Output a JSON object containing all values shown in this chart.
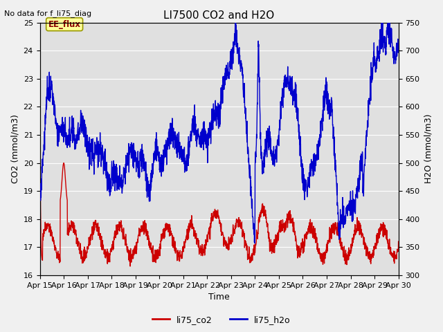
{
  "title": "LI7500 CO2 and H2O",
  "top_left_text": "No data for f_li75_diag",
  "annotation_text": "EE_flux",
  "xlabel": "Time",
  "ylabel_left": "CO2 (mmol/m3)",
  "ylabel_right": "H2O (mmol/m3)",
  "ylim_left": [
    16.0,
    25.0
  ],
  "ylim_right": [
    300,
    750
  ],
  "yticks_left": [
    16.0,
    17.0,
    18.0,
    19.0,
    20.0,
    21.0,
    22.0,
    23.0,
    24.0,
    25.0
  ],
  "yticks_right": [
    300,
    350,
    400,
    450,
    500,
    550,
    600,
    650,
    700,
    750
  ],
  "xtick_labels": [
    "Apr 15",
    "Apr 16",
    "Apr 17",
    "Apr 18",
    "Apr 19",
    "Apr 20",
    "Apr 21",
    "Apr 22",
    "Apr 23",
    "Apr 24",
    "Apr 25",
    "Apr 26",
    "Apr 27",
    "Apr 28",
    "Apr 29",
    "Apr 30"
  ],
  "co2_color": "#cc0000",
  "h2o_color": "#0000cc",
  "fig_bg_color": "#f0f0f0",
  "plot_bg_color": "#e0e0e0",
  "annotation_bg": "#ffff99",
  "legend_co2": "li75_co2",
  "legend_h2o": "li75_h2o",
  "grid_color": "#ffffff",
  "linewidth": 1.0
}
